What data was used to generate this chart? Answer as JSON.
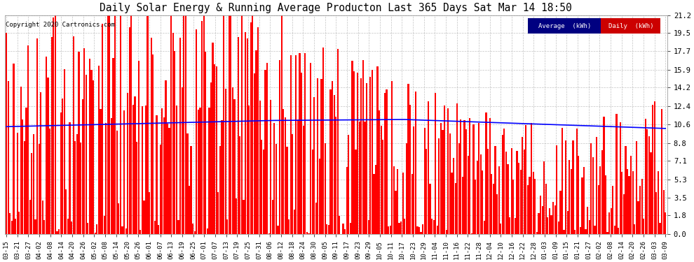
{
  "title": "Daily Solar Energy & Running Average Producton Last 365 Days Sat Mar 14 18:50",
  "copyright": "Copyright 2020 Cartronics.com",
  "yticks": [
    0.0,
    1.8,
    3.5,
    5.3,
    7.1,
    8.8,
    10.6,
    12.4,
    14.2,
    15.9,
    17.7,
    19.5,
    21.2
  ],
  "ymax": 21.2,
  "ymin": 0.0,
  "bar_color": "#FF0000",
  "avg_color": "#0000FF",
  "bg_color": "#FFFFFF",
  "plot_bg_color": "#FFFFFF",
  "grid_color": "#AAAAAA",
  "legend_avg_bg": "#000080",
  "legend_daily_bg": "#CC0000",
  "xtick_labels": [
    "03-15",
    "03-21",
    "03-27",
    "04-02",
    "04-08",
    "04-14",
    "04-20",
    "04-26",
    "05-02",
    "05-08",
    "05-14",
    "05-20",
    "05-26",
    "06-01",
    "06-07",
    "06-13",
    "06-19",
    "06-25",
    "07-01",
    "07-07",
    "07-13",
    "07-19",
    "07-25",
    "07-31",
    "08-06",
    "08-12",
    "08-18",
    "08-24",
    "08-30",
    "09-05",
    "09-11",
    "09-17",
    "09-23",
    "09-29",
    "10-05",
    "10-11",
    "10-17",
    "10-23",
    "10-29",
    "11-04",
    "11-10",
    "11-16",
    "11-22",
    "11-28",
    "12-04",
    "12-10",
    "12-16",
    "12-22",
    "12-28",
    "01-03",
    "01-09",
    "01-15",
    "01-21",
    "01-27",
    "02-02",
    "02-08",
    "02-14",
    "02-20",
    "02-26",
    "03-03",
    "03-09"
  ]
}
